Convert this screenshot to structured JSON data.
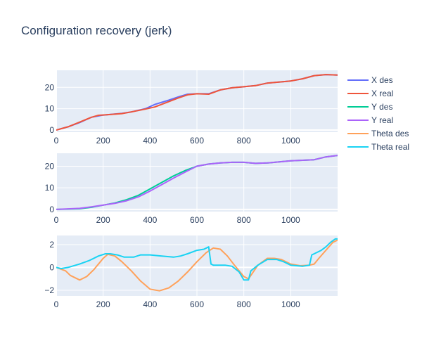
{
  "title": "Configuration recovery (jerk)",
  "colors": {
    "plot_bg": "#e5ecf6",
    "grid": "#ffffff",
    "text": "#2a3f5f"
  },
  "legend": {
    "placement": "right",
    "entries": [
      "X des",
      "X real",
      "Y des",
      "Y real",
      "Theta des",
      "Theta real"
    ]
  },
  "chart_data": [
    {
      "type": "line",
      "panel": "top",
      "xlim": [
        0,
        1200
      ],
      "ylim": [
        -1,
        28
      ],
      "xticks": [
        0,
        200,
        400,
        600,
        800,
        1000
      ],
      "yticks": [
        0,
        10,
        20
      ],
      "grid": true,
      "series": [
        {
          "name": "X des",
          "color": "#636efa",
          "x": [
            0,
            50,
            100,
            150,
            200,
            280,
            320,
            380,
            420,
            480,
            520,
            560,
            600,
            650,
            700,
            750,
            800,
            850,
            900,
            1000,
            1050,
            1100,
            1150,
            1200
          ],
          "y": [
            0,
            1.5,
            3.5,
            6.0,
            7.0,
            7.8,
            8.5,
            10.0,
            12.0,
            14.0,
            15.5,
            16.8,
            17.0,
            17.0,
            18.8,
            19.8,
            20.3,
            20.8,
            22.0,
            23.0,
            24.0,
            25.5,
            26.0,
            25.8
          ]
        },
        {
          "name": "X real",
          "color": "#ef553b",
          "x": [
            0,
            50,
            100,
            150,
            180,
            210,
            280,
            320,
            380,
            420,
            480,
            520,
            560,
            600,
            650,
            700,
            750,
            800,
            850,
            900,
            1000,
            1050,
            1100,
            1150,
            1200
          ],
          "y": [
            0,
            1.5,
            3.7,
            6.0,
            6.9,
            7.1,
            7.7,
            8.5,
            9.8,
            10.8,
            13.3,
            15.0,
            16.5,
            17.0,
            16.8,
            18.8,
            19.8,
            20.3,
            20.8,
            22.0,
            23.0,
            24.0,
            25.5,
            26.0,
            25.8
          ]
        }
      ]
    },
    {
      "type": "line",
      "panel": "middle",
      "xlim": [
        0,
        1200
      ],
      "ylim": [
        -1,
        26
      ],
      "xticks": [
        0,
        200,
        400,
        600,
        800,
        1000
      ],
      "yticks": [
        0,
        10,
        20
      ],
      "grid": true,
      "series": [
        {
          "name": "Y des",
          "color": "#00cc96",
          "x": [
            0,
            100,
            150,
            200,
            250,
            300,
            350,
            400,
            450,
            500,
            550,
            600,
            650,
            700,
            750,
            800,
            850,
            900,
            1000,
            1100,
            1150,
            1200
          ],
          "y": [
            0,
            0.3,
            1.0,
            2.0,
            3.0,
            4.5,
            6.5,
            9.5,
            12.5,
            15.5,
            18.0,
            20.0,
            21.0,
            21.5,
            21.8,
            21.8,
            21.3,
            21.5,
            22.5,
            23.0,
            24.3,
            25.0
          ]
        },
        {
          "name": "Y real",
          "color": "#ab63fa",
          "x": [
            0,
            100,
            150,
            200,
            250,
            300,
            350,
            400,
            450,
            500,
            550,
            600,
            650,
            700,
            750,
            800,
            850,
            900,
            1000,
            1100,
            1150,
            1200
          ],
          "y": [
            0,
            0.5,
            1.2,
            2.0,
            2.8,
            4.0,
            5.8,
            8.5,
            11.5,
            14.5,
            17.3,
            20.0,
            21.0,
            21.5,
            21.8,
            21.8,
            21.3,
            21.5,
            22.5,
            23.0,
            24.3,
            25.0
          ]
        }
      ]
    },
    {
      "type": "line",
      "panel": "bottom",
      "xlim": [
        0,
        1200
      ],
      "ylim": [
        -2.5,
        2.8
      ],
      "xticks": [
        0,
        200,
        400,
        600,
        800,
        1000
      ],
      "yticks": [
        -2,
        0,
        2
      ],
      "grid": true,
      "series": [
        {
          "name": "Theta des",
          "color": "#ffa15a",
          "x": [
            0,
            40,
            60,
            100,
            130,
            160,
            200,
            220,
            250,
            280,
            320,
            360,
            400,
            440,
            480,
            520,
            560,
            600,
            640,
            670,
            700,
            730,
            760,
            800,
            820,
            860,
            900,
            930,
            960,
            1000,
            1040,
            1080,
            1100,
            1120,
            1150,
            1180,
            1200
          ],
          "y": [
            0,
            -0.3,
            -0.7,
            -1.1,
            -0.8,
            -0.2,
            0.8,
            1.15,
            1.0,
            0.5,
            -0.3,
            -1.2,
            -1.9,
            -2.05,
            -1.8,
            -1.2,
            -0.4,
            0.5,
            1.3,
            1.7,
            1.6,
            1.0,
            0.2,
            -0.8,
            -1.0,
            0.2,
            0.8,
            0.8,
            0.7,
            0.3,
            0.15,
            0.2,
            0.3,
            0.8,
            1.5,
            2.2,
            2.4
          ]
        },
        {
          "name": "Theta real",
          "color": "#19d3f3",
          "x": [
            0,
            20,
            50,
            100,
            140,
            180,
            210,
            230,
            260,
            290,
            330,
            360,
            400,
            450,
            500,
            530,
            560,
            600,
            630,
            650,
            660,
            670,
            690,
            720,
            750,
            780,
            800,
            820,
            830,
            860,
            900,
            940,
            970,
            1000,
            1050,
            1080,
            1090,
            1100,
            1130,
            1150,
            1170,
            1190,
            1200
          ],
          "y": [
            0,
            -0.1,
            0,
            0.3,
            0.6,
            1.0,
            1.2,
            1.2,
            1.1,
            0.9,
            0.9,
            1.1,
            1.1,
            1.0,
            0.9,
            1.0,
            1.2,
            1.5,
            1.6,
            1.8,
            0.3,
            0.2,
            0.2,
            0.2,
            0.1,
            -0.4,
            -1.1,
            -1.1,
            -0.3,
            0.2,
            0.7,
            0.7,
            0.5,
            0.2,
            0.1,
            0.2,
            1.1,
            1.2,
            1.5,
            1.8,
            2.2,
            2.5,
            2.5
          ]
        }
      ]
    }
  ]
}
